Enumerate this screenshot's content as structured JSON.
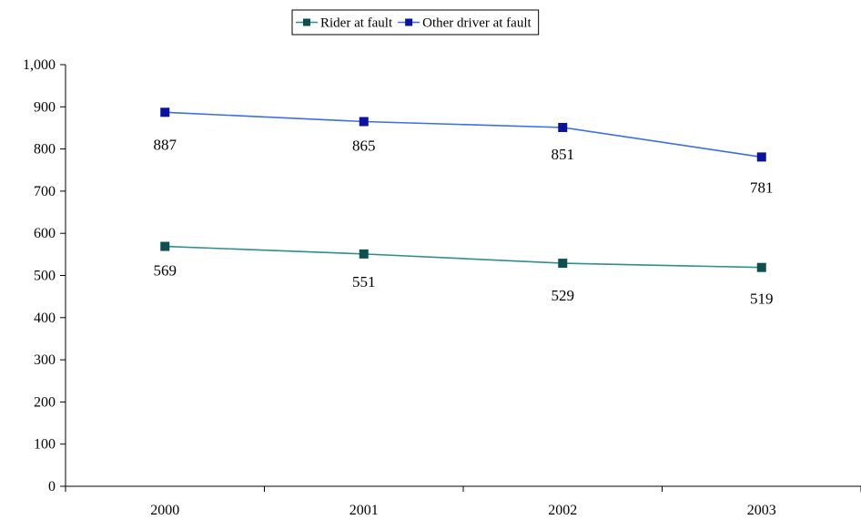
{
  "chart_data": {
    "type": "line",
    "title": "",
    "xlabel": "",
    "ylabel": "",
    "categories": [
      "2000",
      "2001",
      "2002",
      "2003"
    ],
    "ylim": [
      0,
      1000
    ],
    "yticks": [
      0,
      100,
      200,
      300,
      400,
      500,
      600,
      700,
      800,
      900,
      1000
    ],
    "ytick_labels": [
      "0",
      "100",
      "200",
      "300",
      "400",
      "500",
      "600",
      "700",
      "800",
      "900",
      "1,000"
    ],
    "grid": false,
    "legend_position": "top-center",
    "series": [
      {
        "name": "Rider at fault",
        "values": [
          569,
          551,
          529,
          519
        ],
        "labels": [
          "569",
          "551",
          "529",
          "519"
        ],
        "color": "#2f8f8b",
        "marker_color": "#0f4f4f",
        "marker": "square"
      },
      {
        "name": "Other driver at fault",
        "values": [
          887,
          865,
          851,
          781
        ],
        "labels": [
          "887",
          "865",
          "851",
          "781"
        ],
        "color": "#3b6cf0",
        "marker_color": "#0b139c",
        "marker": "square"
      }
    ]
  }
}
